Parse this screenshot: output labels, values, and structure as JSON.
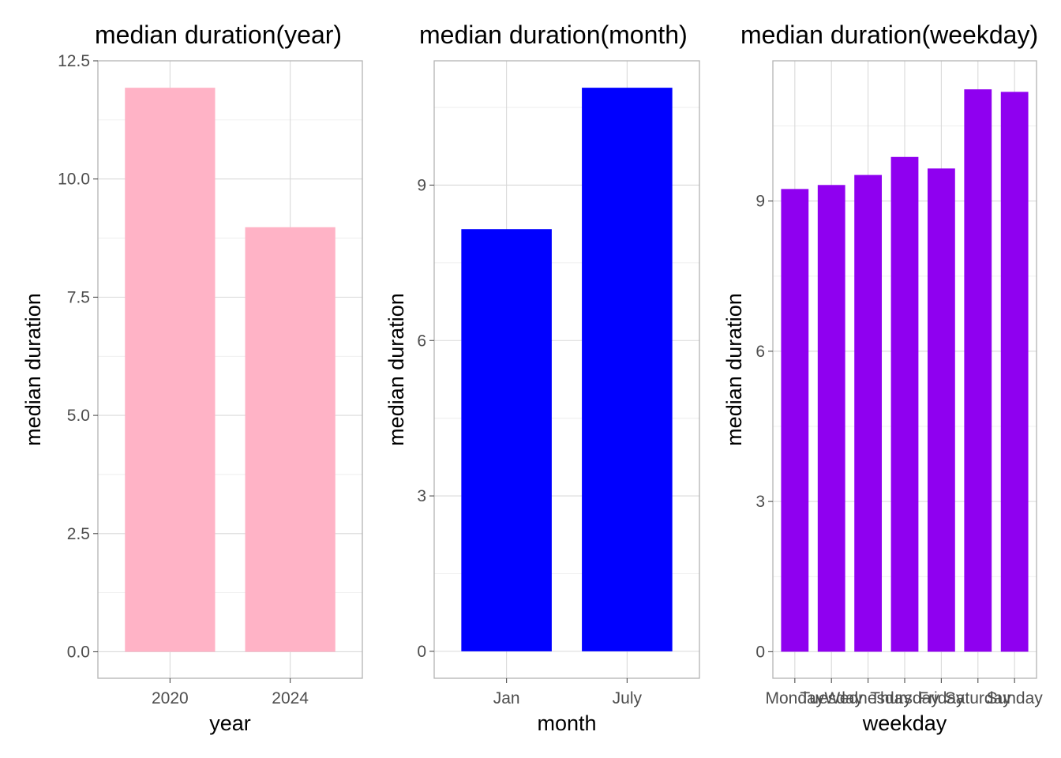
{
  "chart_data": [
    {
      "type": "bar",
      "title": "median duration(year)",
      "xlabel": "year",
      "ylabel": "median duration",
      "categories": [
        "2020",
        "2024"
      ],
      "values": [
        11.93,
        8.98
      ],
      "ylim": [
        -0.56,
        12.5
      ],
      "yticks": [
        0,
        2.5,
        5,
        7.5,
        10,
        12.5
      ],
      "ytick_labels": [
        "0.0",
        "2.5",
        "5.0",
        "7.5",
        "10.0",
        "12.5"
      ],
      "color": "#FFB3C6",
      "grid": true,
      "legend": "none"
    },
    {
      "type": "bar",
      "title": "median duration(month)",
      "xlabel": "month",
      "ylabel": "median duration",
      "categories": [
        "Jan",
        "July"
      ],
      "values": [
        8.15,
        10.88
      ],
      "ylim": [
        -0.52,
        11.4
      ],
      "yticks": [
        0,
        3,
        6,
        9
      ],
      "ytick_labels": [
        "0",
        "3",
        "6",
        "9"
      ],
      "color": "#0000FF",
      "grid": true,
      "legend": "none"
    },
    {
      "type": "bar",
      "title": "median duration(weekday)",
      "xlabel": "weekday",
      "ylabel": "median duration",
      "categories": [
        "Monday",
        "Tuesday",
        "Wednesday",
        "Thursday",
        "Friday",
        "Saturday",
        "Sunday"
      ],
      "values": [
        9.24,
        9.32,
        9.52,
        9.88,
        9.65,
        11.23,
        11.18
      ],
      "ylim": [
        -0.53,
        11.8
      ],
      "yticks": [
        0,
        3,
        6,
        9
      ],
      "ytick_labels": [
        "0",
        "3",
        "6",
        "9"
      ],
      "color": "#8F00F0",
      "grid": true,
      "legend": "none"
    }
  ]
}
